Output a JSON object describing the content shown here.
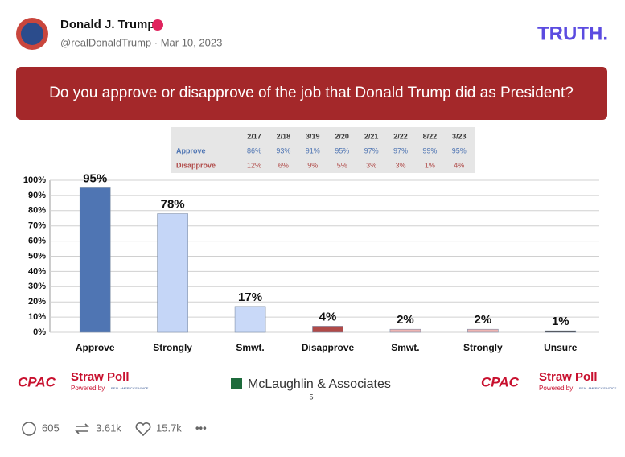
{
  "post": {
    "author": "Donald J. Trump",
    "handle": "@realDonaldTrump · Mar 10, 2023",
    "brand": "TRUTH."
  },
  "chart_data": {
    "type": "bar",
    "title": "Do you approve or disapprove of the job that Donald Trump did as President?",
    "categories": [
      "Approve",
      "Strongly",
      "Smwt.",
      "Disapprove",
      "Smwt.",
      "Strongly",
      "Unsure"
    ],
    "values": [
      95,
      78,
      17,
      4,
      2,
      2,
      1
    ],
    "value_labels": [
      "95%",
      "78%",
      "17%",
      "4%",
      "2%",
      "2%",
      "1%"
    ],
    "colors": [
      "#4f75b3",
      "#c5d6f7",
      "#c9d9f8",
      "#b04a48",
      "#eeb4b2",
      "#eeb4b2",
      "#444444"
    ],
    "ylim": [
      0,
      100
    ],
    "yticks": [
      {
        "value": 0,
        "label": "0%"
      },
      {
        "value": 10,
        "label": "10%"
      },
      {
        "value": 20,
        "label": "20%"
      },
      {
        "value": 30,
        "label": "30%"
      },
      {
        "value": 40,
        "label": "40%"
      },
      {
        "value": 50,
        "label": "50%"
      },
      {
        "value": 60,
        "label": "60%"
      },
      {
        "value": 70,
        "label": "70%"
      },
      {
        "value": 80,
        "label": "80%"
      },
      {
        "value": 90,
        "label": "90%"
      },
      {
        "value": 100,
        "label": "100%"
      }
    ],
    "grid": true,
    "trend_table": {
      "columns": [
        "2/17",
        "2/18",
        "3/19",
        "2/20",
        "2/21",
        "2/22",
        "8/22",
        "3/23"
      ],
      "rows": [
        {
          "label": "Approve",
          "color": "#4f75b3",
          "values": [
            "86%",
            "93%",
            "91%",
            "95%",
            "97%",
            "97%",
            "99%",
            "95%"
          ]
        },
        {
          "label": "Disapprove",
          "color": "#b04a48",
          "values": [
            "12%",
            "6%",
            "9%",
            "5%",
            "3%",
            "3%",
            "1%",
            "4%"
          ]
        }
      ]
    }
  },
  "footer": {
    "logo": "CPAC",
    "poll": "Straw Poll",
    "powered": "Powered by",
    "sponsor": "REAL AMERICA'S VOICE",
    "firm": "McLaughlin & Associates",
    "page": "5"
  },
  "actions": {
    "replies": "605",
    "reposts": "3.61k",
    "likes": "15.7k",
    "more": "•••"
  }
}
